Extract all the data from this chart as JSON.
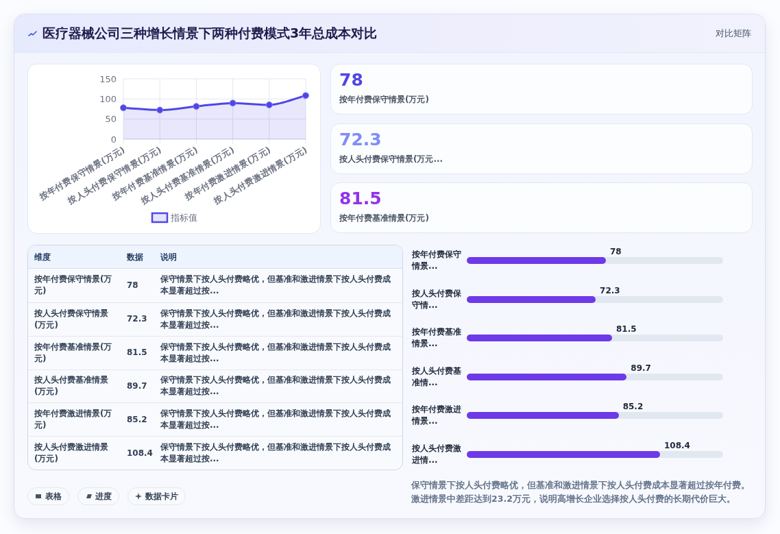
{
  "chart_data": [
    {
      "type": "other",
      "title": "医疗器械公司三种增长情景下两种付费模式3年总成本对比",
      "annotations": [
        "对比矩阵"
      ]
    },
    {
      "type": "area",
      "categories": [
        "按年付费保守情景(万元)",
        "按人头付费保守情景(万元)",
        "按年付费基准情景(万元)",
        "按人头付费基准情景(万元)",
        "按年付费激进情景(万元)",
        "按人头付费激进情景(万元)"
      ],
      "series": [
        {
          "name": "指标值",
          "color": "#4f46e5",
          "values": [
            78,
            72.3,
            81.5,
            89.7,
            85.2,
            108.4
          ]
        }
      ],
      "ylim": [
        0,
        150
      ],
      "yticks": [
        0,
        50,
        100,
        150
      ],
      "grid": true,
      "legend": "bottom",
      "marker": "circle"
    },
    {
      "type": "other",
      "categories": [
        "按年付费保守情景(万元)",
        "按人头付费保守情景(万元...",
        "按年付费基准情景(万元)"
      ],
      "values": [
        78,
        72.3,
        81.5
      ],
      "colors": [
        "#4f46e5",
        "#818cf8",
        "#9333ea"
      ],
      "data_labels": true
    },
    {
      "type": "other",
      "categories": [
        "按年付费保守情景(万元)",
        "按人头付费保守情景(万元)",
        "按年付费基准情景(万元)",
        "按人头付费基准情景(万元)",
        "按年付费激进情景(万元)",
        "按人头付费激进情景(万元)"
      ],
      "values": [
        78,
        72.3,
        81.5,
        89.7,
        85.2,
        108.4
      ],
      "data_labels": true,
      "annotations": [
        "维度",
        "数据",
        "说明",
        "保守情景下按人头付费略优，但基准和激进情景下按人头付费成本显著超过按...",
        "保守情景下按人头付费略优，但基准和激进情景下按人头付费成本显著超过按...",
        "保守情景下按人头付费略优，但基准和激进情景下按人头付费成本显著超过按...",
        "保守情景下按人头付费略优，但基准和激进情景下按人头付费成本显著超过按...",
        "保守情景下按人头付费略优，但基准和激进情景下按人头付费成本显著超过按...",
        "保守情景下按人头付费略优，但基准和激进情景下按人头付费成本显著超过按..."
      ]
    },
    {
      "type": "bar",
      "orientation": "horizontal",
      "categories": [
        "按年付费保守情景...",
        "按人头付费保守情...",
        "按年付费基准情景...",
        "按人头付费基准情...",
        "按年付费激进情景...",
        "按人头付费激进情..."
      ],
      "values": [
        78,
        72.3,
        81.5,
        89.7,
        85.2,
        108.4
      ],
      "data_labels": true,
      "color": "#6d3ae8",
      "tick_labels": "y",
      "annotations": [
        "保守情景下按人头付费略优，但基准和激进情景下按人头付费成本显著超过按年付费。激进情景中差距达到23.2万元，说明高增长企业选择按人头付费的长期代价巨大。"
      ]
    },
    {
      "type": "other",
      "annotations": [
        "表格",
        "进度",
        "数据卡片"
      ]
    }
  ]
}
